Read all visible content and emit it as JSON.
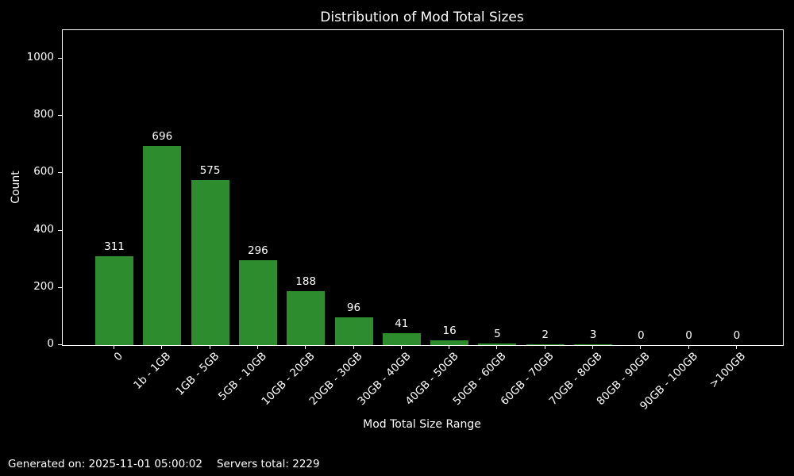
{
  "chart_data": {
    "type": "bar",
    "title": "Distribution of Mod Total Sizes",
    "xlabel": "Mod Total Size Range",
    "ylabel": "Count",
    "categories": [
      "0",
      "1b - 1GB",
      "1GB - 5GB",
      "5GB - 10GB",
      "10GB - 20GB",
      "20GB - 30GB",
      "30GB - 40GB",
      "40GB - 50GB",
      "50GB - 60GB",
      "60GB - 70GB",
      "70GB - 80GB",
      "80GB - 90GB",
      "90GB - 100GB",
      ">100GB"
    ],
    "values": [
      311,
      696,
      575,
      296,
      188,
      96,
      41,
      16,
      5,
      2,
      3,
      0,
      0,
      0
    ],
    "yticks": [
      0,
      200,
      400,
      600,
      800,
      1000
    ],
    "ylim": [
      0,
      1100
    ],
    "grid": false,
    "legend": null,
    "value_labels_shown": true,
    "bar_color": "#2d8c2d",
    "background_color": "#000000",
    "text_color": "#ffffff",
    "axis_color": "#ffffff"
  },
  "footer": {
    "generated": "Generated on: 2025-11-01 05:00:02",
    "servers": "Servers total: 2229"
  }
}
